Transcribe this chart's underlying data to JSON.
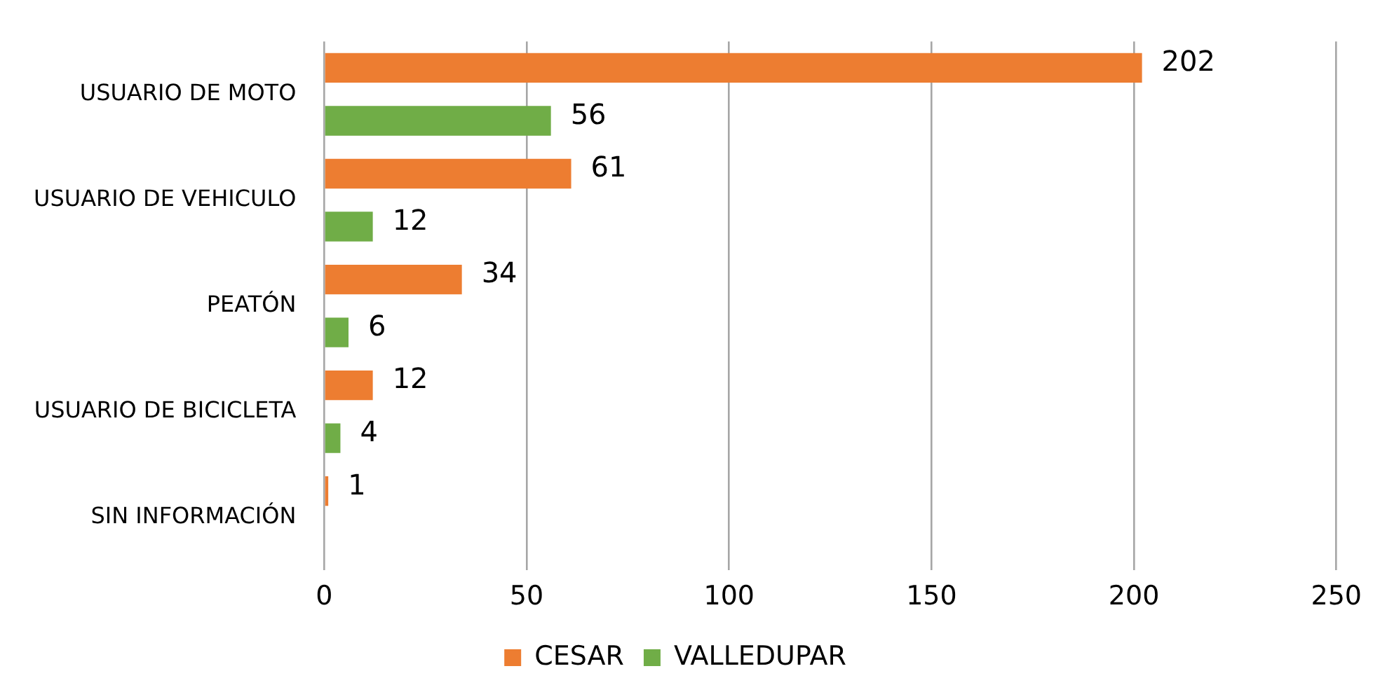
{
  "chart_data": {
    "type": "bar",
    "orientation": "horizontal",
    "categories": [
      "USUARIO DE MOTO",
      "USUARIO DE VEHICULO",
      "PEATÓN",
      "USUARIO DE BICICLETA",
      "SIN INFORMACIÓN"
    ],
    "series": [
      {
        "name": "CESAR",
        "color": "#ed7d31",
        "values": [
          202,
          61,
          34,
          12,
          1
        ]
      },
      {
        "name": "VALLEDUPAR",
        "color": "#70ad47",
        "values": [
          56,
          12,
          6,
          4,
          null
        ]
      }
    ],
    "xlim": [
      0,
      250
    ],
    "xticks": [
      0,
      50,
      100,
      150,
      200,
      250
    ],
    "grid": "x",
    "legend": "bottom",
    "data_labels": true
  }
}
